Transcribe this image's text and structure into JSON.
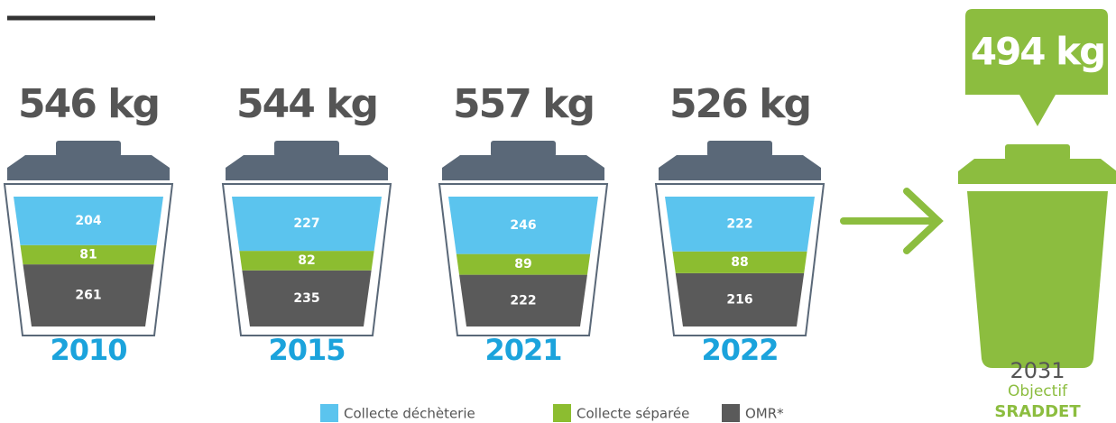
{
  "chart_data": {
    "type": "stacked-bin",
    "categories": [
      "2010",
      "2015",
      "2021",
      "2022"
    ],
    "series": [
      {
        "name": "Collecte déchèterie",
        "color": "#5bc4ee",
        "values": [
          204,
          227,
          246,
          222
        ]
      },
      {
        "name": "Collecte séparée",
        "color": "#8cbd30",
        "values": [
          81,
          82,
          89,
          88
        ]
      },
      {
        "name": "OMR*",
        "color": "#5a5a5a",
        "values": [
          261,
          235,
          222,
          216
        ]
      }
    ],
    "totals": [
      546,
      544,
      557,
      526
    ],
    "total_labels": [
      "546 kg",
      "544 kg",
      "557 kg",
      "526 kg"
    ],
    "target": {
      "year": "2031",
      "value": 494,
      "label": "494 kg",
      "note": "Objectif",
      "name": "SRADDET",
      "color": "#8cbd3f"
    }
  }
}
